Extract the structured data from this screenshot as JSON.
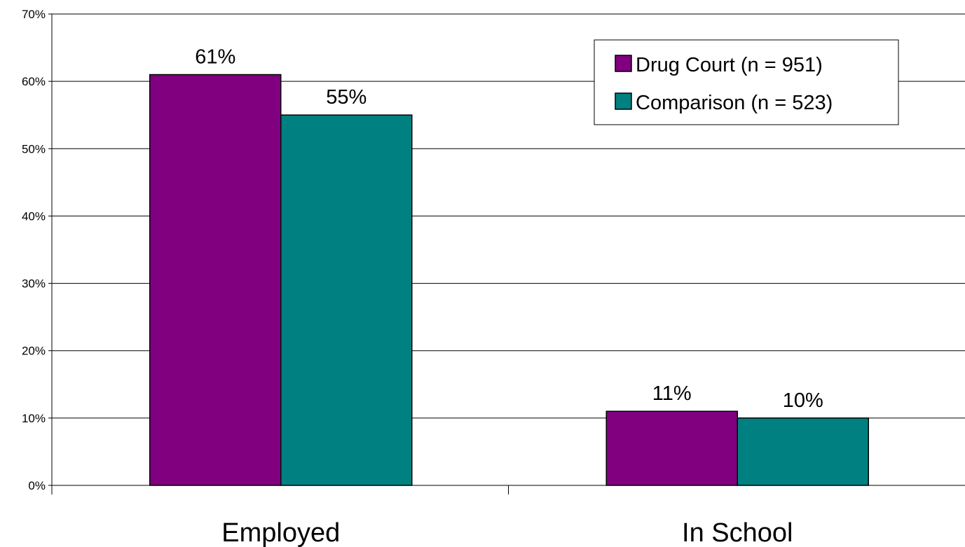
{
  "chart_data": {
    "type": "bar",
    "categories": [
      "Employed",
      "In School"
    ],
    "series": [
      {
        "name": "Drug Court (n = 951)",
        "values": [
          61,
          11
        ],
        "labels": [
          "61%",
          "11%"
        ],
        "color": "#800080"
      },
      {
        "name": "Comparison (n = 523)",
        "values": [
          55,
          10
        ],
        "labels": [
          "55%",
          "10%"
        ],
        "color": "#008080"
      }
    ],
    "y_ticks": [
      "0%",
      "10%",
      "20%",
      "30%",
      "40%",
      "50%",
      "60%",
      "70%"
    ],
    "ylim": [
      0,
      70
    ],
    "ylabel_format": "percent",
    "grid": true,
    "legend_position": "top-right",
    "title": "",
    "xlabel": "",
    "ylabel": ""
  }
}
